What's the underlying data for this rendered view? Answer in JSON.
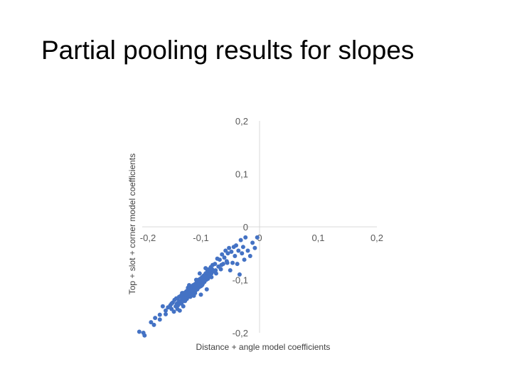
{
  "slide": {
    "title": "Partial pooling results for slopes"
  },
  "chart_data": {
    "type": "scatter",
    "title": "",
    "xlabel": "Distance + angle model coefficients",
    "ylabel": "Top + slot + corner model coefficients",
    "xlim": [
      -0.2,
      0.2
    ],
    "ylim": [
      -0.2,
      0.2
    ],
    "x_ticks": [
      "-0,2",
      "-0,1",
      "0",
      "0,1",
      "0,2"
    ],
    "y_ticks": [
      "0,2",
      "0,1",
      "0",
      "-0,1",
      "-0,2"
    ],
    "grid": false,
    "marker_color": "#4472C4",
    "axis_color": "#D9D9D9",
    "series": [
      {
        "x": [
          -0.205,
          -0.198,
          -0.196,
          -0.185,
          -0.18,
          -0.178,
          -0.17,
          -0.165,
          -0.16,
          -0.156,
          -0.152,
          -0.15,
          -0.148,
          -0.146,
          -0.145,
          -0.143,
          -0.141,
          -0.14,
          -0.139,
          -0.138,
          -0.137,
          -0.136,
          -0.135,
          -0.134,
          -0.133,
          -0.132,
          -0.131,
          -0.13,
          -0.129,
          -0.128,
          -0.127,
          -0.126,
          -0.125,
          -0.124,
          -0.123,
          -0.122,
          -0.121,
          -0.12,
          -0.119,
          -0.118,
          -0.117,
          -0.116,
          -0.115,
          -0.114,
          -0.113,
          -0.112,
          -0.111,
          -0.11,
          -0.109,
          -0.108,
          -0.107,
          -0.106,
          -0.105,
          -0.104,
          -0.103,
          -0.102,
          -0.101,
          -0.1,
          -0.099,
          -0.098,
          -0.097,
          -0.096,
          -0.095,
          -0.094,
          -0.093,
          -0.092,
          -0.091,
          -0.09,
          -0.089,
          -0.088,
          -0.087,
          -0.086,
          -0.085,
          -0.084,
          -0.083,
          -0.082,
          -0.081,
          -0.08,
          -0.078,
          -0.076,
          -0.074,
          -0.072,
          -0.07,
          -0.068,
          -0.066,
          -0.064,
          -0.062,
          -0.06,
          -0.058,
          -0.056,
          -0.054,
          -0.052,
          -0.05,
          -0.048,
          -0.046,
          -0.044,
          -0.042,
          -0.04,
          -0.038,
          -0.036,
          -0.034,
          -0.032,
          -0.03,
          -0.028,
          -0.026,
          -0.024,
          -0.02,
          -0.016,
          -0.012,
          -0.008,
          -0.004,
          -0.11,
          -0.125,
          -0.135,
          -0.115,
          -0.105,
          -0.095,
          -0.085,
          -0.075,
          -0.065,
          -0.055,
          -0.1,
          -0.09,
          -0.12,
          -0.13,
          -0.14,
          -0.108,
          -0.098,
          -0.088,
          -0.118,
          -0.128,
          -0.112,
          -0.102,
          -0.092,
          -0.082,
          -0.122,
          -0.132,
          -0.142,
          -0.15,
          -0.16,
          -0.17
        ],
        "y": [
          -0.198,
          -0.2,
          -0.205,
          -0.18,
          -0.185,
          -0.172,
          -0.166,
          -0.15,
          -0.158,
          -0.152,
          -0.148,
          -0.155,
          -0.143,
          -0.16,
          -0.138,
          -0.15,
          -0.145,
          -0.135,
          -0.148,
          -0.142,
          -0.132,
          -0.158,
          -0.14,
          -0.13,
          -0.145,
          -0.137,
          -0.128,
          -0.15,
          -0.134,
          -0.125,
          -0.14,
          -0.13,
          -0.122,
          -0.136,
          -0.127,
          -0.118,
          -0.132,
          -0.124,
          -0.115,
          -0.128,
          -0.12,
          -0.112,
          -0.126,
          -0.118,
          -0.11,
          -0.124,
          -0.116,
          -0.108,
          -0.12,
          -0.112,
          -0.104,
          -0.118,
          -0.11,
          -0.1,
          -0.114,
          -0.106,
          -0.098,
          -0.112,
          -0.104,
          -0.095,
          -0.108,
          -0.1,
          -0.092,
          -0.104,
          -0.096,
          -0.088,
          -0.1,
          -0.092,
          -0.084,
          -0.096,
          -0.088,
          -0.08,
          -0.092,
          -0.084,
          -0.076,
          -0.088,
          -0.08,
          -0.072,
          -0.084,
          -0.07,
          -0.088,
          -0.06,
          -0.075,
          -0.062,
          -0.08,
          -0.052,
          -0.07,
          -0.058,
          -0.045,
          -0.065,
          -0.05,
          -0.04,
          -0.082,
          -0.047,
          -0.068,
          -0.038,
          -0.055,
          -0.035,
          -0.07,
          -0.045,
          -0.09,
          -0.025,
          -0.05,
          -0.038,
          -0.062,
          -0.02,
          -0.045,
          -0.055,
          -0.03,
          -0.04,
          -0.02,
          -0.125,
          -0.135,
          -0.14,
          -0.12,
          -0.11,
          -0.102,
          -0.09,
          -0.082,
          -0.072,
          -0.068,
          -0.128,
          -0.118,
          -0.11,
          -0.125,
          -0.155,
          -0.1,
          -0.11,
          -0.098,
          -0.132,
          -0.14,
          -0.13,
          -0.088,
          -0.078,
          -0.095,
          -0.115,
          -0.125,
          -0.135,
          -0.145,
          -0.165,
          -0.175
        ]
      }
    ]
  }
}
